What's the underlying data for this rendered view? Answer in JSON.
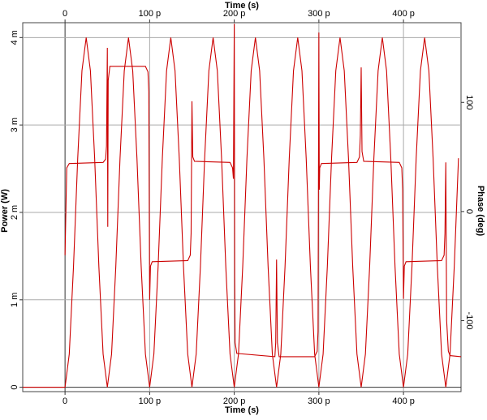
{
  "chart_data": {
    "type": "line",
    "xlabel": "Time (s)",
    "ylabel": "Power (W)",
    "y2label": "Phase (deg)",
    "xlim": [
      -5e-11,
      4.68e-10
    ],
    "xticks": [
      0,
      {
        "value": 1e-10,
        "label": "100 p"
      },
      {
        "value": 2e-10,
        "label": "200 p"
      },
      {
        "value": 3e-10,
        "label": "300 p"
      },
      {
        "value": 4e-10,
        "label": "400 p"
      }
    ],
    "ylim": [
      -5e-05,
      0.00417
    ],
    "yticks": [
      0,
      {
        "value": 0.001,
        "label": "1 m"
      },
      {
        "value": 0.002,
        "label": "2 m"
      },
      {
        "value": 0.003,
        "label": "3 m"
      },
      {
        "value": 0.004,
        "label": "4 m"
      }
    ],
    "y2lim": [
      -165,
      173
    ],
    "y2ticks": [
      -100,
      0,
      100
    ],
    "grid": true,
    "series": [
      {
        "color": "#cc0000",
        "axis": "y",
        "x": [
          -5e-11,
          -4.5e-11,
          -4e-11,
          -3.5e-11,
          -3e-11,
          -2.5e-11,
          -2e-11,
          -1.5e-11,
          -1e-11,
          -5e-12,
          0,
          5e-12,
          1e-11,
          1.5e-11,
          2e-11,
          2.5e-11,
          3e-11,
          3.5e-11,
          4e-11,
          4.5e-11,
          5e-11,
          5.5e-11,
          6e-11,
          6.5e-11,
          7e-11,
          7.5e-11,
          8e-11,
          8.5e-11,
          9e-11,
          9.5e-11,
          1e-10,
          1.05e-10,
          1.1e-10,
          1.15e-10,
          1.2e-10,
          1.25e-10,
          1.3e-10,
          1.35e-10,
          1.4e-10,
          1.45e-10,
          1.5e-10,
          1.55e-10,
          1.6e-10,
          1.65e-10,
          1.7e-10,
          1.75e-10,
          1.8e-10,
          1.85e-10,
          1.9e-10,
          1.95e-10,
          2e-10,
          2.05e-10,
          2.1e-10,
          2.15e-10,
          2.2e-10,
          2.25e-10,
          2.3e-10,
          2.35e-10,
          2.4e-10,
          2.45e-10,
          2.5e-10,
          2.55e-10,
          2.6e-10,
          2.65e-10,
          2.7e-10,
          2.75e-10,
          2.8e-10,
          2.85e-10,
          2.9e-10,
          2.95e-10,
          3e-10,
          3.05e-10,
          3.1e-10,
          3.15e-10,
          3.2e-10,
          3.25e-10,
          3.3e-10,
          3.35e-10,
          3.4e-10,
          3.45e-10,
          3.5e-10,
          3.55e-10,
          3.6e-10,
          3.65e-10,
          3.7e-10,
          3.75e-10,
          3.8e-10,
          3.85e-10,
          3.9e-10,
          3.95e-10,
          4e-10,
          4.05e-10,
          4.1e-10,
          4.15e-10,
          4.2e-10,
          4.25e-10,
          4.3e-10,
          4.35e-10,
          4.4e-10,
          4.45e-10,
          4.5e-10,
          4.55e-10,
          4.6e-10,
          4.65e-10
        ],
        "values": [
          0,
          0,
          0,
          0,
          0,
          0,
          0,
          0,
          0,
          0,
          0,
          0.00038,
          0.00138,
          0.00262,
          0.00362,
          0.004,
          0.00362,
          0.00262,
          0.00138,
          0.00038,
          0,
          0.00038,
          0.00138,
          0.00262,
          0.00362,
          0.004,
          0.00362,
          0.00262,
          0.00138,
          0.00038,
          0,
          0.00038,
          0.00138,
          0.00262,
          0.00362,
          0.004,
          0.00362,
          0.00262,
          0.00138,
          0.00038,
          0,
          0.00038,
          0.00138,
          0.00262,
          0.00362,
          0.004,
          0.00362,
          0.00262,
          0.00138,
          0.00038,
          0,
          0.00038,
          0.00138,
          0.00262,
          0.00362,
          0.004,
          0.00362,
          0.00262,
          0.00138,
          0.00038,
          0,
          0.00038,
          0.00138,
          0.00262,
          0.00362,
          0.004,
          0.00362,
          0.00262,
          0.00138,
          0.00038,
          0,
          0.00038,
          0.00138,
          0.00262,
          0.00362,
          0.004,
          0.00362,
          0.00262,
          0.00138,
          0.00038,
          0,
          0.00038,
          0.00138,
          0.00262,
          0.00362,
          0.004,
          0.00362,
          0.00262,
          0.00138,
          0.00038,
          0,
          0.00038,
          0.00138,
          0.00262,
          0.00362,
          0.004,
          0.00362,
          0.00262,
          0.00138,
          0.00038,
          0,
          0.00038,
          0.00138,
          0.00262
        ]
      },
      {
        "color": "#cc0000",
        "axis": "y2",
        "x": [
          0,
          2e-12,
          5e-12,
          4.5e-11,
          4.8e-11,
          4.9e-11,
          5e-11,
          5.05e-11,
          5.1e-11,
          5.3e-11,
          9.5e-11,
          9.8e-11,
          9.9e-11,
          1e-10,
          1.01e-10,
          1.03e-10,
          1.45e-10,
          1.48e-10,
          1.49e-10,
          1.5e-10,
          1.51e-10,
          1.53e-10,
          1.95e-10,
          1.98e-10,
          1.99e-10,
          2e-10,
          2.005e-10,
          2.01e-10,
          2.03e-10,
          2.48e-10,
          2.49e-10,
          2.5e-10,
          2.51e-10,
          2.53e-10,
          2.95e-10,
          2.98e-10,
          2.99e-10,
          3e-10,
          3.005e-10,
          3.01e-10,
          3.03e-10,
          3.45e-10,
          3.48e-10,
          3.49e-10,
          3.5e-10,
          3.51e-10,
          3.53e-10,
          3.95e-10,
          3.98e-10,
          3.99e-10,
          4e-10,
          4.01e-10,
          4.03e-10,
          4.45e-10,
          4.48e-10,
          4.49e-10,
          4.5e-10,
          4.51e-10,
          4.53e-10,
          4.55e-10,
          4.68e-10
        ],
        "values": [
          -40,
          40,
          44,
          45,
          48,
          60,
          150,
          -14,
          120,
          133,
          133,
          128,
          110,
          -81,
          -50,
          -46,
          -45,
          -40,
          -20,
          101,
          50,
          46,
          45,
          40,
          30,
          172,
          -60,
          -120,
          -130,
          -133,
          -120,
          -44,
          -120,
          -133,
          -133,
          -128,
          -110,
          164,
          20,
          40,
          44,
          45,
          50,
          70,
          132,
          55,
          46,
          45,
          40,
          20,
          -80,
          -50,
          -46,
          -45,
          -40,
          -20,
          45,
          -100,
          -128,
          -132,
          -133
        ]
      }
    ]
  }
}
